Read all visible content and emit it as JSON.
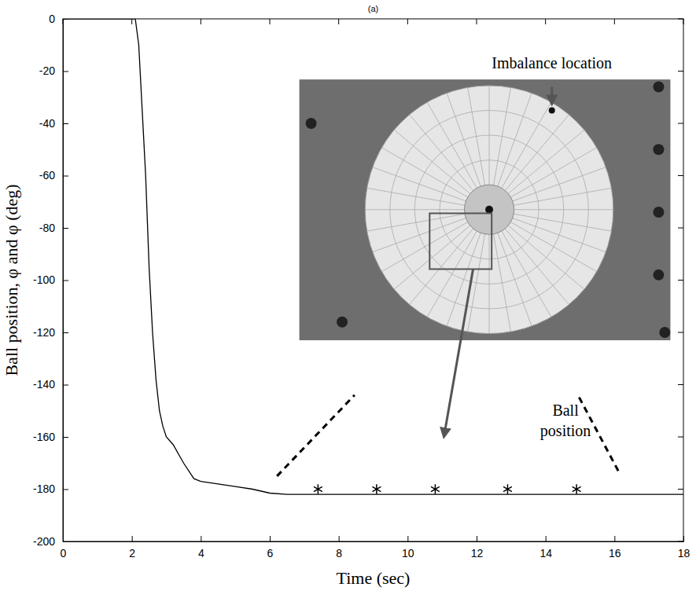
{
  "chart_data": {
    "type": "line",
    "title": "(a)",
    "x_label": "Time (sec)",
    "y_label": "Ball position, φ and φ (deg)",
    "annotations": [
      "Imbalance location",
      "Ball position"
    ],
    "xlim": [
      0,
      18
    ],
    "xticks": [
      0,
      2,
      4,
      6,
      8,
      10,
      12,
      14,
      16,
      18
    ],
    "ylim": [
      -200,
      0
    ],
    "yticks": [
      -200,
      -180,
      -160,
      -140,
      -120,
      -100,
      -80,
      -60,
      -40,
      -20,
      0
    ],
    "grid": false,
    "series": [
      {
        "type": "line",
        "color": "#000000",
        "line_style": "solid",
        "x": [
          0,
          2.1,
          2.2,
          2.3,
          2.4,
          2.5,
          2.6,
          2.7,
          2.8,
          2.9,
          3.0,
          3.2,
          3.5,
          3.8,
          4.0,
          4.5,
          5.0,
          5.5,
          6.0,
          6.5,
          18
        ],
        "values": [
          0,
          0,
          -10,
          -35,
          -60,
          -95,
          -120,
          -138,
          -150,
          -156,
          -160,
          -163,
          -170,
          -176,
          -177,
          -178,
          -179,
          -180,
          -181.5,
          -182,
          -182
        ]
      },
      {
        "type": "scatter",
        "color": "#000000",
        "marker": "asterisk",
        "x": [
          7.4,
          9.1,
          10.8,
          12.9,
          14.9
        ],
        "values": [
          -180,
          -180,
          -180,
          -180,
          -180
        ]
      }
    ]
  }
}
